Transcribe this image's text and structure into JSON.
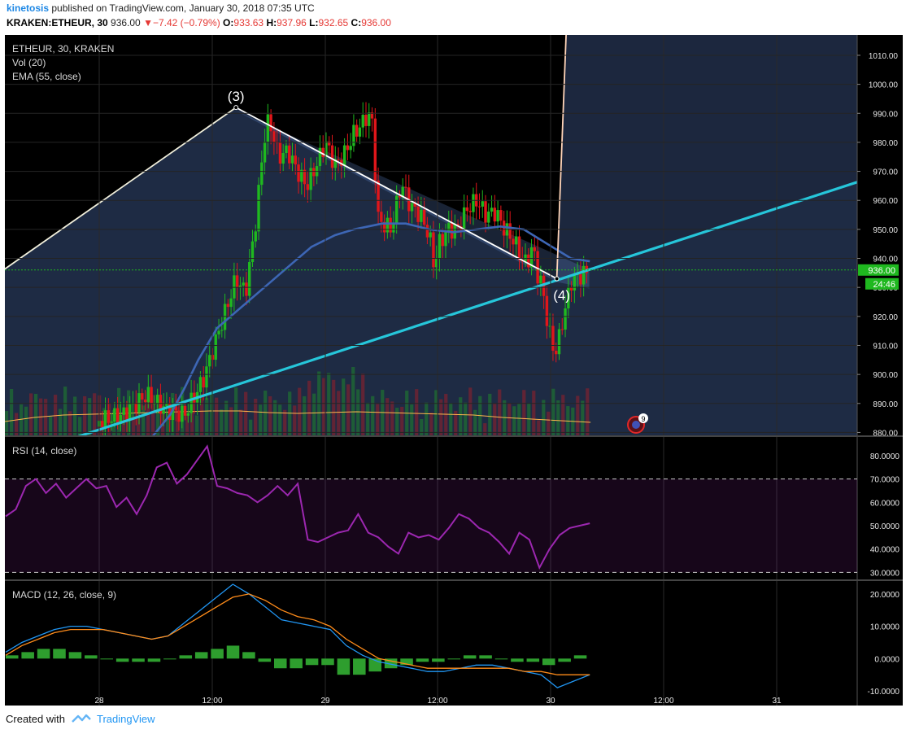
{
  "header": {
    "author": "kinetosis",
    "published_text": "published on TradingView.com, January 30, 2018 07:35 UTC",
    "symbol": "KRAKEN:ETHEUR, 30",
    "last": "936.00",
    "change": "−7.42 (−0.79%)",
    "o_label": "O:",
    "o": "933.63",
    "h_label": "H:",
    "h": "937.96",
    "l_label": "L:",
    "l": "932.65",
    "c_label": "C:",
    "c": "936.00"
  },
  "legend": {
    "title": "ETHEUR, 30, KRAKEN",
    "vol": "Vol (20)",
    "ema": "EMA (55, close)",
    "rsi": "RSI (14, close)",
    "macd": "MACD (12, 26, close, 9)"
  },
  "annotations": {
    "wave3": "(3)",
    "wave4": "(4)",
    "event_count": "9"
  },
  "price_badge": "936.00",
  "timer_badge": "24:46",
  "footer": {
    "created_with": "Created with",
    "brand": "TradingView"
  },
  "colors": {
    "up": "#1fb81f",
    "down": "#e0161a",
    "ema": "#3d66b5",
    "rsi": "#9c27b0",
    "macd": "#2196f3",
    "signal": "#ff8c1a",
    "trendline": "#26c6da"
  },
  "chart_data": [
    {
      "type": "candlestick",
      "name": "ETHEUR, 30, KRAKEN",
      "x_tick_labels": [
        "28",
        "12:00",
        "29",
        "12:00",
        "30",
        "12:00",
        "31"
      ],
      "y_ticks": [
        880,
        890,
        900,
        910,
        920,
        930,
        940,
        950,
        960,
        970,
        980,
        990,
        1000,
        1010
      ],
      "ylim": [
        879,
        1017
      ],
      "close_path": [
        [
          0,
          884
        ],
        [
          10,
          886
        ],
        [
          20,
          893
        ],
        [
          28,
          888
        ],
        [
          36,
          886
        ],
        [
          44,
          898
        ],
        [
          52,
          918
        ],
        [
          58,
          933
        ],
        [
          62,
          928
        ],
        [
          66,
          950
        ],
        [
          70,
          982
        ],
        [
          72,
          988
        ],
        [
          76,
          975
        ],
        [
          80,
          977
        ],
        [
          84,
          970
        ],
        [
          88,
          965
        ],
        [
          92,
          972
        ],
        [
          96,
          980
        ],
        [
          100,
          972
        ],
        [
          104,
          976
        ],
        [
          108,
          983
        ],
        [
          112,
          987
        ],
        [
          114,
          990
        ],
        [
          116,
          986
        ],
        [
          118,
          954
        ],
        [
          120,
          952
        ],
        [
          124,
          950
        ],
        [
          128,
          966
        ],
        [
          132,
          958
        ],
        [
          136,
          955
        ],
        [
          140,
          948
        ],
        [
          142,
          937
        ],
        [
          144,
          945
        ],
        [
          148,
          950
        ],
        [
          152,
          950
        ],
        [
          156,
          957
        ],
        [
          160,
          960
        ],
        [
          164,
          955
        ],
        [
          168,
          956
        ],
        [
          172,
          950
        ],
        [
          176,
          946
        ],
        [
          180,
          938
        ],
        [
          182,
          940
        ],
        [
          184,
          944
        ],
        [
          186,
          934
        ],
        [
          188,
          930
        ],
        [
          190,
          918
        ],
        [
          192,
          910
        ],
        [
          194,
          908
        ],
        [
          196,
          917
        ],
        [
          198,
          924
        ],
        [
          200,
          932
        ],
        [
          204,
          934
        ],
        [
          208,
          936
        ]
      ],
      "ema55_path": [
        [
          22,
          878
        ],
        [
          30,
          886
        ],
        [
          36,
          895
        ],
        [
          42,
          905
        ],
        [
          50,
          916
        ],
        [
          60,
          923
        ],
        [
          70,
          930
        ],
        [
          80,
          937
        ],
        [
          90,
          944
        ],
        [
          100,
          948
        ],
        [
          108,
          950
        ],
        [
          114,
          951
        ],
        [
          120,
          952
        ],
        [
          130,
          952
        ],
        [
          140,
          950
        ],
        [
          150,
          949
        ],
        [
          160,
          950
        ],
        [
          170,
          951
        ],
        [
          180,
          950
        ],
        [
          186,
          947
        ],
        [
          192,
          944
        ],
        [
          196,
          942
        ],
        [
          200,
          940
        ],
        [
          208,
          939
        ]
      ],
      "volume_ma20_approx": [
        17,
        22,
        25,
        26,
        27,
        28,
        29,
        30,
        30,
        28,
        27,
        28,
        29,
        28,
        27,
        26,
        25,
        22,
        20,
        18,
        16
      ],
      "ascending_trendline": {
        "start": [
          -30,
          873
        ],
        "end": [
          260,
          950
        ]
      },
      "descending_trendline": {
        "start": [
          58,
          992
        ],
        "end": [
          194,
          933
        ]
      },
      "impulse_line": {
        "start": [
          -60,
          925
        ],
        "end": [
          58,
          992
        ]
      },
      "breakout_line": {
        "start": [
          194,
          933
        ],
        "end": [
          198,
          1018
        ]
      }
    },
    {
      "type": "line",
      "name": "RSI (14, close)",
      "y_ticks": [
        "30.0000",
        "40.0000",
        "50.0000",
        "60.0000",
        "70.0000",
        "80.0000"
      ],
      "ylim": [
        27,
        88
      ],
      "bands": [
        30,
        70
      ],
      "values": [
        54,
        57,
        67,
        70,
        64,
        68,
        62,
        66,
        70,
        66,
        67,
        58,
        62,
        55,
        63,
        75,
        77,
        68,
        72,
        78,
        84,
        67,
        66,
        64,
        63,
        60,
        63,
        67,
        63,
        68,
        44,
        43,
        45,
        47,
        48,
        55,
        47,
        45,
        41,
        38,
        47,
        45,
        46,
        44,
        49,
        55,
        53,
        49,
        47,
        43,
        38,
        47,
        44,
        32,
        40,
        46,
        49,
        50,
        51
      ]
    },
    {
      "type": "line",
      "name": "MACD (12, 26, close, 9)",
      "y_ticks": [
        "-10.0000",
        "0.0000",
        "10.0000",
        "20.0000"
      ],
      "ylim": [
        -11,
        24
      ],
      "series": [
        {
          "values": [
            2,
            5,
            7,
            9,
            10,
            10,
            9,
            8,
            7,
            6,
            7,
            11,
            15,
            19,
            23,
            20,
            16,
            12,
            11,
            10,
            9,
            4,
            1,
            -1,
            -2,
            -3,
            -4,
            -4,
            -3,
            -2,
            -2,
            -3,
            -4,
            -5,
            -9,
            -7,
            -5
          ]
        },
        {
          "values": [
            1,
            4,
            6,
            8,
            9,
            9,
            9,
            8,
            7,
            6,
            7,
            10,
            13,
            16,
            19,
            20,
            18,
            15,
            13,
            12,
            10,
            6,
            3,
            0,
            -1,
            -2,
            -3,
            -3,
            -3,
            -3,
            -3,
            -3,
            -4,
            -4,
            -5,
            -5,
            -5
          ]
        }
      ],
      "histogram": [
        1,
        2,
        3,
        3,
        2,
        1,
        0,
        -1,
        -1,
        -1,
        0,
        1,
        2,
        3,
        4,
        2,
        -1,
        -3,
        -3,
        -2,
        -2,
        -5,
        -5,
        -4,
        -3,
        -2,
        -1,
        -1,
        0,
        1,
        1,
        0,
        -1,
        -1,
        -2,
        -1,
        1
      ]
    }
  ]
}
